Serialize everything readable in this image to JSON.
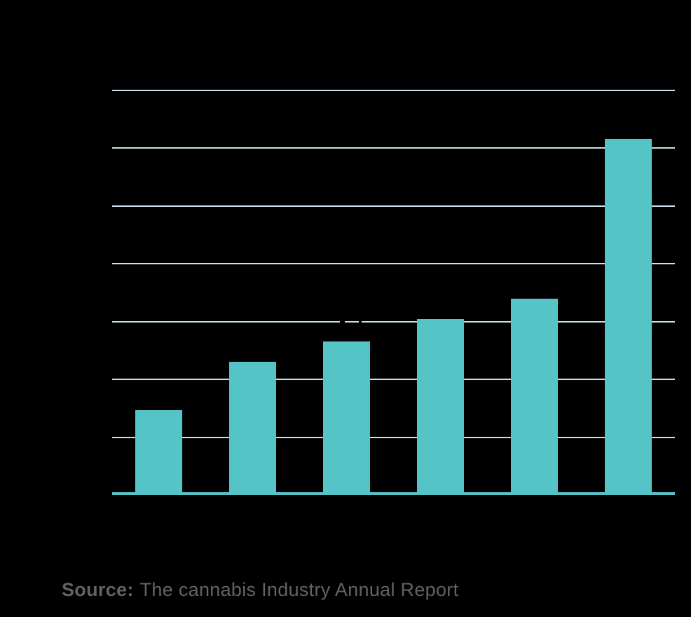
{
  "chart_data": {
    "type": "bar",
    "title": "",
    "xlabel": "",
    "ylabel": "",
    "categories": [
      "",
      "",
      "",
      "",
      "",
      ""
    ],
    "values": [
      1.47,
      2.31,
      2.66,
      3.05,
      3.4,
      6.16
    ],
    "value_unit": "gridline-units (axis tick labels not visible in image)",
    "ylim": [
      0,
      7
    ],
    "grid": true,
    "legend": false,
    "gridline_gaps": {
      "3": [
        [
          485,
          492
        ],
        [
          512,
          516
        ]
      ]
    },
    "colors": {
      "bar": "#54c4c6",
      "gridline": "#c8e4ea",
      "axis_line": "#54c4c6",
      "background": "#000000",
      "source_text": "#626366"
    }
  },
  "source": {
    "label": "Source:",
    "text": "The cannabis Industry Annual Report"
  }
}
